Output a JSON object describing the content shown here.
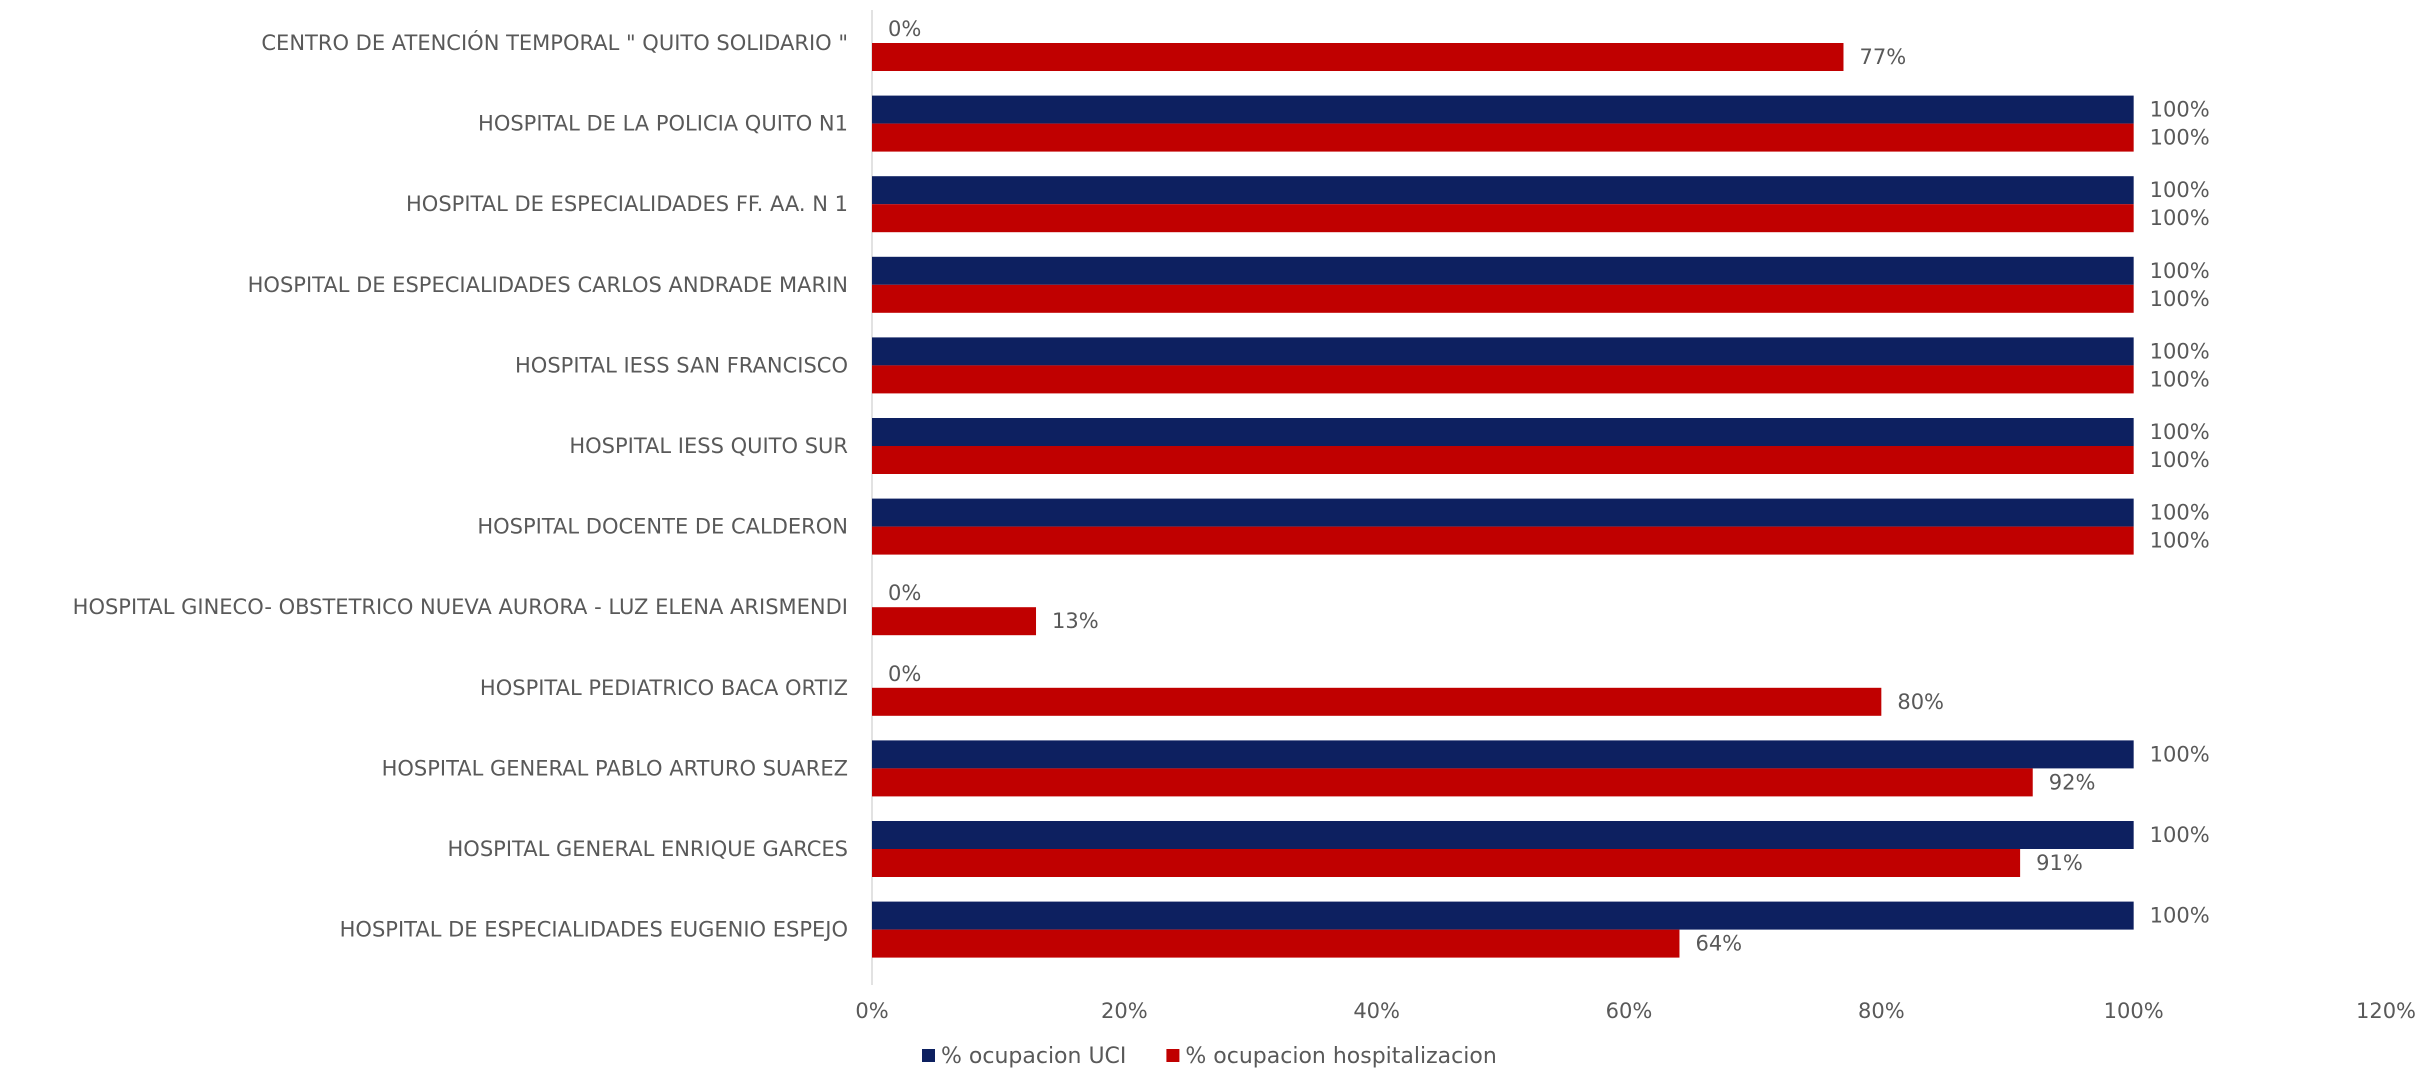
{
  "chart_data": {
    "type": "bar",
    "orientation": "horizontal",
    "categories": [
      "CENTRO DE ATENCIÓN TEMPORAL \" QUITO SOLIDARIO \"",
      "HOSPITAL DE LA POLICIA QUITO N1",
      "HOSPITAL DE ESPECIALIDADES FF. AA. N 1",
      "HOSPITAL DE ESPECIALIDADES CARLOS ANDRADE MARIN",
      "HOSPITAL IESS SAN FRANCISCO",
      "HOSPITAL IESS QUITO SUR",
      "HOSPITAL DOCENTE DE CALDERON",
      "HOSPITAL GINECO- OBSTETRICO NUEVA AURORA - LUZ ELENA ARISMENDI",
      "HOSPITAL PEDIATRICO BACA ORTIZ",
      "HOSPITAL GENERAL PABLO ARTURO SUAREZ",
      "HOSPITAL GENERAL ENRIQUE GARCES",
      "HOSPITAL DE ESPECIALIDADES EUGENIO ESPEJO"
    ],
    "series": [
      {
        "name": "% ocupacion UCI",
        "color": "#0d2060",
        "values": [
          0,
          100,
          100,
          100,
          100,
          100,
          100,
          0,
          0,
          100,
          100,
          100
        ],
        "labels": [
          "0%",
          "100%",
          "100%",
          "100%",
          "100%",
          "100%",
          "100%",
          "0%",
          "0%",
          "100%",
          "100%",
          "100%"
        ]
      },
      {
        "name": "% ocupacion hospitalizacion",
        "color": "#c00000",
        "values": [
          77,
          100,
          100,
          100,
          100,
          100,
          100,
          13,
          80,
          92,
          91,
          64
        ],
        "labels": [
          "77%",
          "100%",
          "100%",
          "100%",
          "100%",
          "100%",
          "100%",
          "13%",
          "80%",
          "92%",
          "91%",
          "64%"
        ]
      }
    ],
    "xlim": [
      0,
      120
    ],
    "x_ticks": [
      0,
      20,
      40,
      60,
      80,
      100,
      120
    ],
    "x_tick_labels": [
      "0%",
      "20%",
      "40%",
      "60%",
      "80%",
      "100%",
      "120%"
    ],
    "grid": false,
    "legend": "bottom"
  }
}
